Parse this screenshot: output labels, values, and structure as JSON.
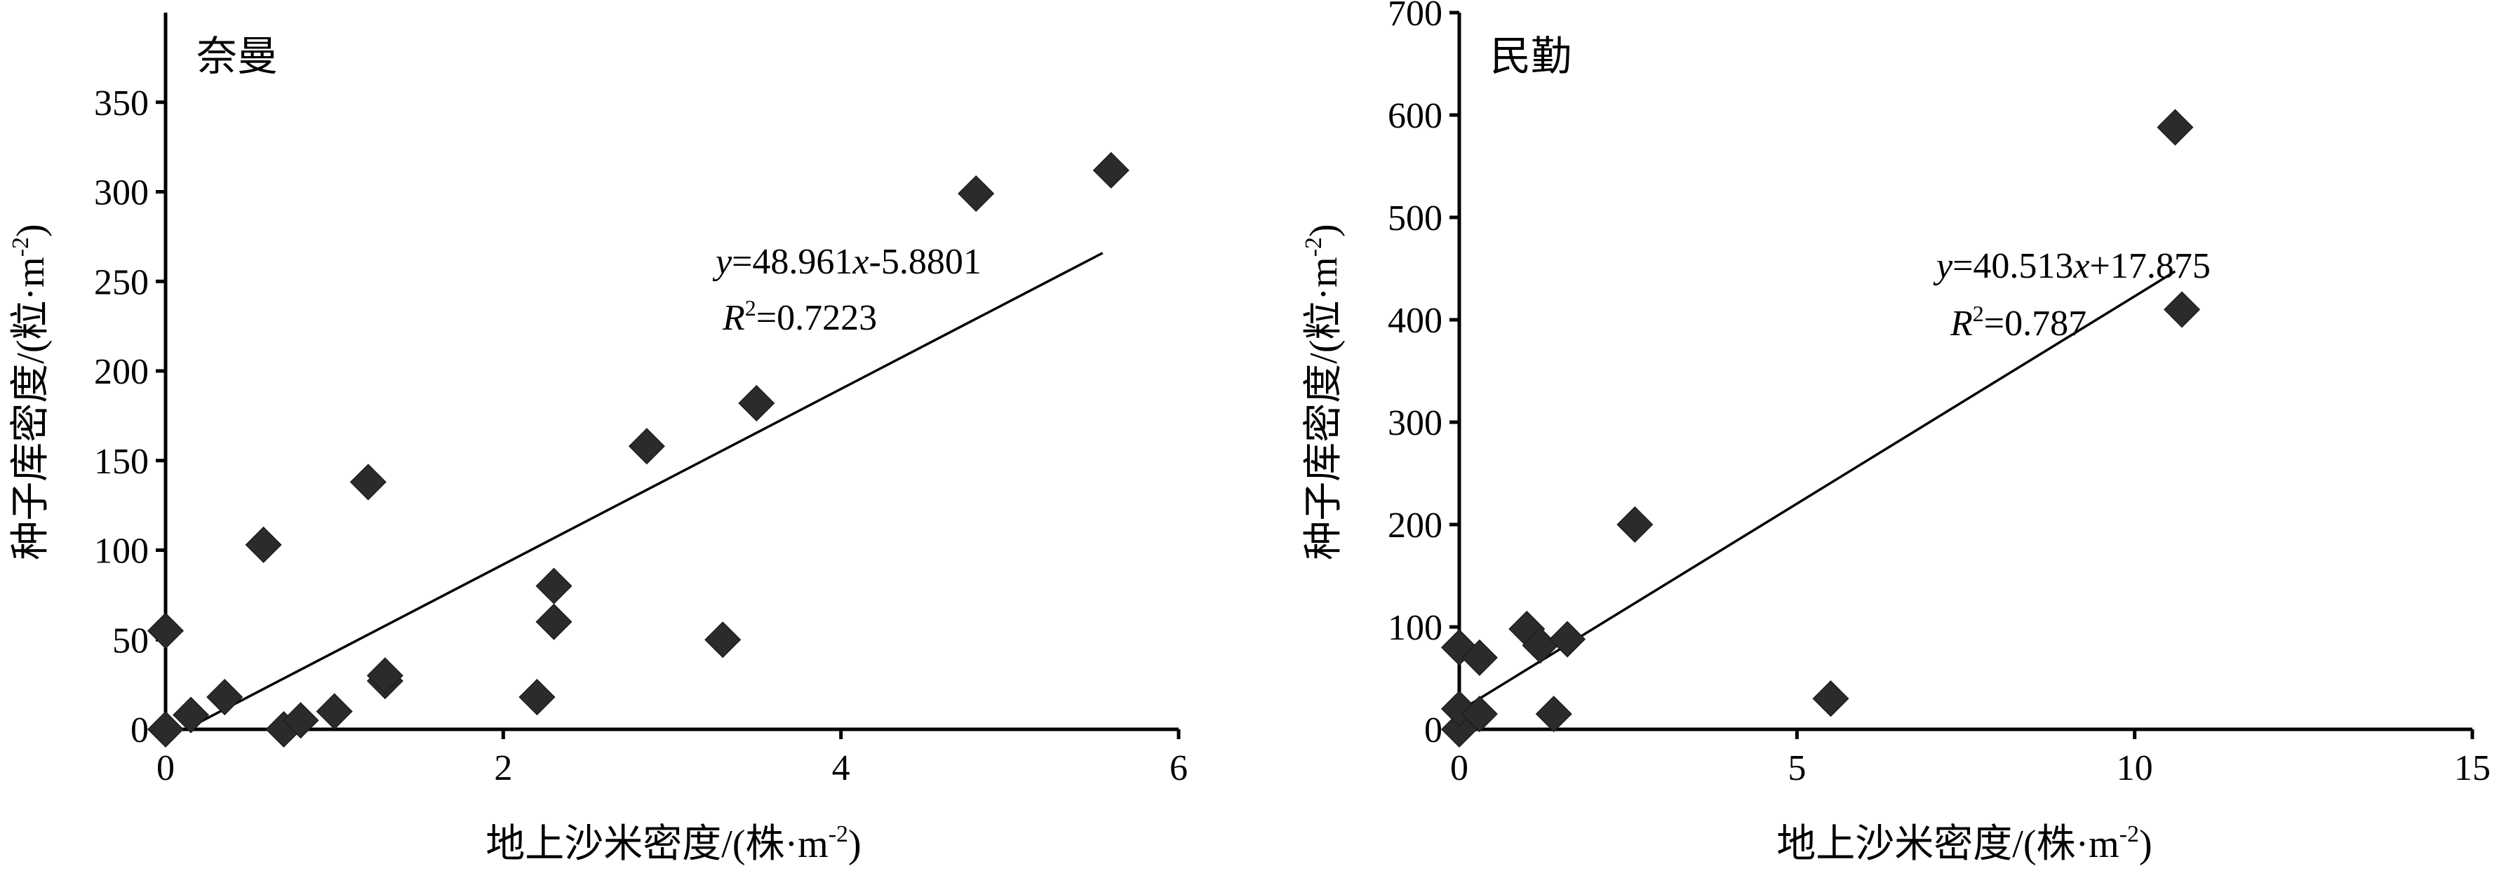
{
  "chart_data": [
    {
      "type": "scatter",
      "title": "奈曼",
      "xlabel_main": "地上沙米密度/(株·m",
      "xlabel_sup": "-2",
      "xlabel_tail": ")",
      "ylabel_main": "种子库密度/(粒·m",
      "ylabel_sup": "-2",
      "ylabel_tail": ")",
      "xlim": [
        0,
        6
      ],
      "ylim": [
        0,
        400
      ],
      "xticks": [
        "0",
        "2",
        "4",
        "6"
      ],
      "yticks": [
        "0",
        "50",
        "100",
        "150",
        "200",
        "250",
        "300",
        "350"
      ],
      "points": [
        [
          0,
          0
        ],
        [
          0,
          55
        ],
        [
          0.15,
          8
        ],
        [
          0.35,
          18
        ],
        [
          0.58,
          103
        ],
        [
          0.7,
          0
        ],
        [
          0.8,
          5
        ],
        [
          1.0,
          10
        ],
        [
          1.2,
          138
        ],
        [
          1.3,
          27
        ],
        [
          1.3,
          30
        ],
        [
          2.2,
          18
        ],
        [
          2.3,
          80
        ],
        [
          2.3,
          60
        ],
        [
          2.85,
          158
        ],
        [
          3.3,
          50
        ],
        [
          3.5,
          182
        ],
        [
          4.8,
          299
        ],
        [
          5.6,
          312
        ]
      ],
      "trendline": {
        "slope": 48.961,
        "intercept": -5.8801,
        "x_range": [
          0.12,
          5.55
        ]
      },
      "equation": {
        "y": "y",
        "eq": "=48.961",
        "x": "x",
        "rest": "-5.8801"
      },
      "r2": {
        "r": "R",
        "sup": "2",
        "value": "=0.7223"
      }
    },
    {
      "type": "scatter",
      "title": "民勤",
      "xlabel_main": "地上沙米密度/(株·m",
      "xlabel_sup": "-2",
      "xlabel_tail": ")",
      "ylabel_main": "种子库密度/(粒·m",
      "ylabel_sup": "-2",
      "ylabel_tail": ")",
      "xlim": [
        0,
        15
      ],
      "ylim": [
        0,
        700
      ],
      "xticks": [
        "0",
        "5",
        "10",
        "15"
      ],
      "yticks": [
        "0",
        "100",
        "200",
        "300",
        "400",
        "500",
        "600",
        "700"
      ],
      "points": [
        [
          0,
          0
        ],
        [
          0,
          20
        ],
        [
          0,
          80
        ],
        [
          0.3,
          70
        ],
        [
          0.3,
          15
        ],
        [
          1.0,
          98
        ],
        [
          1.2,
          82
        ],
        [
          1.6,
          88
        ],
        [
          1.4,
          15
        ],
        [
          2.6,
          200
        ],
        [
          5.5,
          30
        ],
        [
          10.6,
          588
        ],
        [
          10.7,
          410
        ]
      ],
      "trendline": {
        "slope": 40.513,
        "intercept": 17.875,
        "x_range": [
          0,
          10.6
        ]
      },
      "equation": {
        "y": "y",
        "eq": "=40.513",
        "x": "x",
        "rest": "+17.875"
      },
      "r2": {
        "r": "R",
        "sup": "2",
        "value": "=0.787"
      }
    }
  ]
}
